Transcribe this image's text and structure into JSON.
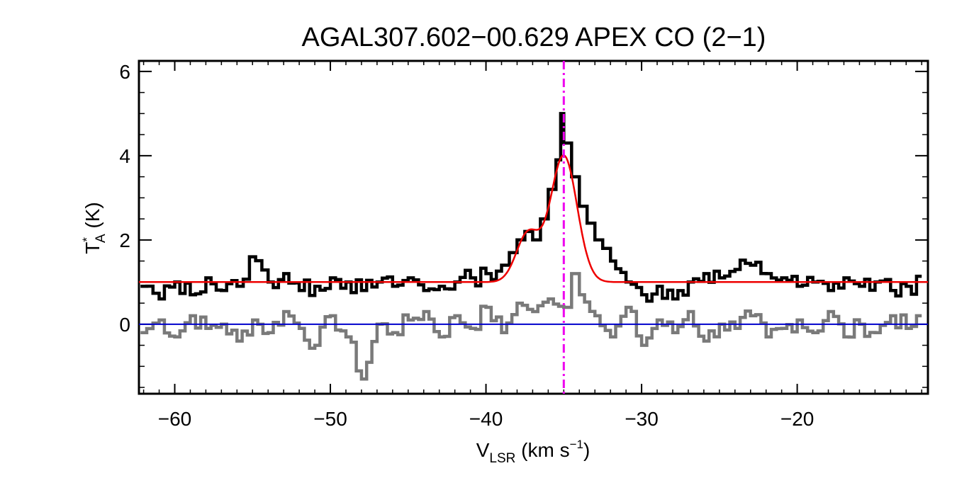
{
  "chart_data": {
    "type": "line",
    "title": "AGAL307.602−00.629  APEX CO (2−1)",
    "xlabel": {
      "main": "V",
      "sub": "LSR",
      "units": " (km s",
      "sup": "−1",
      "close": ")"
    },
    "ylabel": {
      "main": "T",
      "sup": "*",
      "sub": "A",
      "units": " (K)"
    },
    "xlim": [
      -62.3,
      -11.6
    ],
    "ylim": [
      -1.65,
      6.25
    ],
    "xticks": [
      -60,
      -50,
      -40,
      -30,
      -20
    ],
    "xtick_labels": [
      "−60",
      "−50",
      "−40",
      "−30",
      "−20"
    ],
    "yticks": [
      0,
      2,
      4,
      6
    ],
    "ytick_labels": [
      "0",
      "2",
      "4",
      "6"
    ],
    "grid": false,
    "colors": {
      "spectrum": "#000000",
      "residual": "#7a7a7a",
      "fit": "#ee0000",
      "baseline": "#0000cc",
      "vlsr_marker": "#ee00ee"
    },
    "series": [
      {
        "kind": "observed_spectrum",
        "style": "histogram",
        "x": [
          -62.2,
          -61.0,
          -60.0,
          -59.0,
          -58.0,
          -57.0,
          -56.0,
          -55.2,
          -54.0,
          -53.0,
          -52.0,
          -51.0,
          -50.0,
          -49.0,
          -48.0,
          -47.0,
          -46.0,
          -45.0,
          -44.0,
          -43.0,
          -42.0,
          -41.0,
          -40.0,
          -39.0,
          -38.5,
          -38.0,
          -37.5,
          -37.0,
          -36.5,
          -36.0,
          -35.5,
          -35.2,
          -35.0,
          -34.5,
          -34.0,
          -33.5,
          -33.0,
          -32.5,
          -32.0,
          -31.0,
          -30.0,
          -29.0,
          -28.0,
          -27.0,
          -26.0,
          -25.0,
          -24.0,
          -23.0,
          -22.0,
          -21.0,
          -20.0,
          -19.0,
          -18.0,
          -17.0,
          -16.0,
          -15.0,
          -14.0,
          -13.0,
          -12.0
        ],
        "y": [
          0.9,
          0.6,
          1.0,
          0.7,
          1.1,
          0.8,
          0.9,
          1.6,
          1.0,
          1.2,
          0.8,
          0.9,
          1.1,
          1.0,
          0.8,
          1.0,
          0.9,
          1.1,
          0.8,
          0.9,
          1.0,
          1.1,
          1.2,
          1.4,
          1.7,
          2.0,
          2.2,
          2.0,
          2.5,
          3.2,
          3.9,
          5.0,
          4.3,
          3.5,
          2.8,
          2.4,
          2.0,
          1.8,
          1.5,
          1.0,
          0.7,
          0.9,
          0.6,
          1.0,
          1.2,
          1.1,
          1.3,
          1.4,
          1.2,
          1.1,
          0.9,
          1.0,
          0.8,
          1.1,
          0.9,
          1.0,
          0.8,
          0.9,
          1.0
        ]
      },
      {
        "kind": "residual",
        "style": "histogram",
        "x": [
          -62.2,
          -61.0,
          -60.0,
          -59.0,
          -58.0,
          -57.0,
          -56.0,
          -55.0,
          -54.0,
          -53.0,
          -52.0,
          -51.0,
          -50.0,
          -49.0,
          -48.0,
          -47.0,
          -46.0,
          -45.0,
          -44.0,
          -43.0,
          -42.0,
          -41.0,
          -40.0,
          -39.0,
          -38.0,
          -37.0,
          -36.0,
          -35.0,
          -34.5,
          -34.0,
          -33.0,
          -32.0,
          -31.0,
          -30.0,
          -29.0,
          -28.0,
          -27.0,
          -26.0,
          -25.0,
          -24.0,
          -23.0,
          -22.0,
          -21.0,
          -20.0,
          -19.0,
          -18.0,
          -17.0,
          -16.0,
          -15.0,
          -14.0,
          -13.0,
          -12.0
        ],
        "y": [
          -0.2,
          0.1,
          -0.3,
          0.2,
          -0.1,
          0.0,
          -0.4,
          0.1,
          -0.2,
          0.3,
          -0.1,
          -0.5,
          0.2,
          -0.3,
          -1.3,
          0.0,
          -0.2,
          0.1,
          0.3,
          -0.3,
          0.2,
          -0.1,
          0.4,
          -0.2,
          0.5,
          0.3,
          0.6,
          0.4,
          1.2,
          0.7,
          0.2,
          -0.3,
          0.4,
          -0.5,
          0.1,
          -0.2,
          0.3,
          -0.4,
          0.0,
          -0.1,
          0.2,
          -0.3,
          -0.1,
          0.1,
          -0.2,
          0.3,
          -0.3,
          0.0,
          -0.2,
          0.2,
          -0.1,
          0.1
        ]
      },
      {
        "kind": "gaussian_fit",
        "style": "smooth",
        "baseline": 1.0,
        "components": [
          {
            "amp": 3.0,
            "center": -35.0,
            "sigma": 0.85
          },
          {
            "amp": 1.15,
            "center": -37.3,
            "sigma": 0.75
          }
        ],
        "x_range": [
          -62.3,
          -11.6
        ]
      },
      {
        "kind": "zero_baseline",
        "style": "hline",
        "y": 0.0
      }
    ],
    "vlsr_marker": -35.0
  }
}
